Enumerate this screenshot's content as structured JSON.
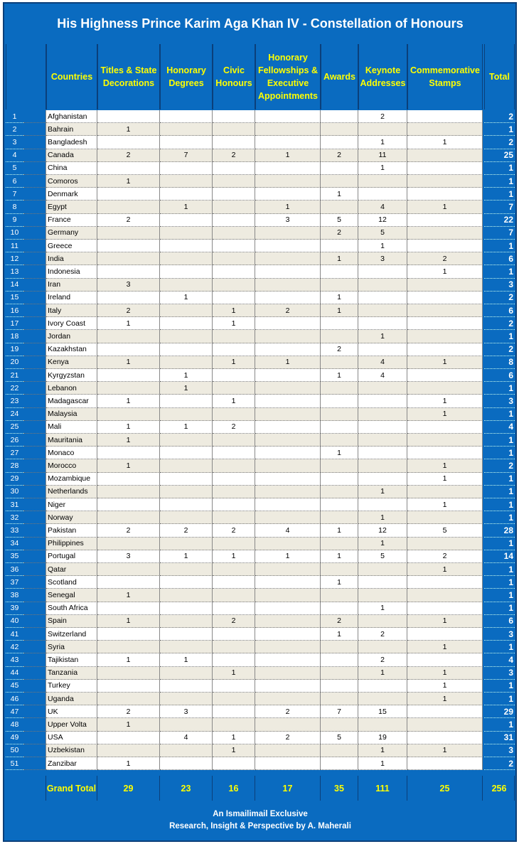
{
  "title": "His Highness Prince Karim Aga Khan IV - Constellation of Honours",
  "headers": [
    "Countries",
    "Titles & State Decorations",
    "Honorary Degrees",
    "Civic Honours",
    "Honorary Fellowships & Executive Appointments",
    "Awards",
    "Keynote Addresses",
    "Commemorative Stamps",
    "Total"
  ],
  "colors": {
    "header_bg": "#0a6bc0",
    "header_text": "#ffff00",
    "row_alt": "#eeebe0"
  },
  "rows": [
    {
      "n": "1",
      "country": "Afghanistan",
      "v": [
        "",
        "",
        "",
        "",
        "",
        "2",
        ""
      ],
      "total": "2",
      "flag": {
        "dir": "v",
        "c": [
          "#000000",
          "#d32011",
          "#007a36"
        ]
      }
    },
    {
      "n": "2",
      "country": "Bahrain",
      "v": [
        "1",
        "",
        "",
        "",
        "",
        "",
        ""
      ],
      "total": "1",
      "flag": {
        "dir": "v",
        "c": [
          "#ffffff",
          "#ce1126",
          "#ce1126"
        ]
      }
    },
    {
      "n": "3",
      "country": "Bangladesh",
      "v": [
        "",
        "",
        "",
        "",
        "",
        "1",
        "1"
      ],
      "total": "2",
      "flag": {
        "dir": "v",
        "c": [
          "#006a4e",
          "#f42a41",
          "#006a4e"
        ]
      }
    },
    {
      "n": "4",
      "country": "Canada",
      "v": [
        "2",
        "7",
        "2",
        "1",
        "2",
        "11",
        ""
      ],
      "total": "25",
      "flag": {
        "dir": "v",
        "c": [
          "#ff0000",
          "#ffffff",
          "#ff0000"
        ]
      }
    },
    {
      "n": "5",
      "country": "China",
      "v": [
        "",
        "",
        "",
        "",
        "",
        "1",
        ""
      ],
      "total": "1",
      "flag": {
        "dir": "v",
        "c": [
          "#de2910"
        ]
      }
    },
    {
      "n": "6",
      "country": "Comoros",
      "v": [
        "1",
        "",
        "",
        "",
        "",
        "",
        ""
      ],
      "total": "1",
      "flag": {
        "dir": "h",
        "c": [
          "#ffd100",
          "#ffffff",
          "#ce1126",
          "#3a75c4"
        ]
      }
    },
    {
      "n": "7",
      "country": "Denmark",
      "v": [
        "",
        "",
        "",
        "",
        "1",
        "",
        ""
      ],
      "total": "1",
      "flag": {
        "dir": "h",
        "c": [
          "#c8102e",
          "#ffffff",
          "#c8102e"
        ]
      }
    },
    {
      "n": "8",
      "country": "Egypt",
      "v": [
        "",
        "1",
        "",
        "1",
        "",
        "4",
        "1"
      ],
      "total": "7",
      "flag": {
        "dir": "h",
        "c": [
          "#ce1126",
          "#ffffff",
          "#000000"
        ]
      }
    },
    {
      "n": "9",
      "country": "France",
      "v": [
        "2",
        "",
        "",
        "3",
        "5",
        "12",
        ""
      ],
      "total": "22",
      "flag": {
        "dir": "v",
        "c": [
          "#0055a4",
          "#ffffff",
          "#ef4135"
        ]
      }
    },
    {
      "n": "10",
      "country": "Germany",
      "v": [
        "",
        "",
        "",
        "",
        "2",
        "5",
        ""
      ],
      "total": "7",
      "flag": {
        "dir": "h",
        "c": [
          "#000000",
          "#dd0000",
          "#ffce00"
        ]
      }
    },
    {
      "n": "11",
      "country": "Greece",
      "v": [
        "",
        "",
        "",
        "",
        "",
        "1",
        ""
      ],
      "total": "1",
      "flag": {
        "dir": "h",
        "c": [
          "#0d5eaf",
          "#ffffff",
          "#0d5eaf",
          "#ffffff",
          "#0d5eaf"
        ]
      }
    },
    {
      "n": "12",
      "country": "India",
      "v": [
        "",
        "",
        "",
        "",
        "1",
        "3",
        "2"
      ],
      "total": "6",
      "flag": {
        "dir": "h",
        "c": [
          "#ff9933",
          "#ffffff",
          "#138808"
        ]
      }
    },
    {
      "n": "13",
      "country": "Indonesia",
      "v": [
        "",
        "",
        "",
        "",
        "",
        "",
        "1"
      ],
      "total": "1",
      "flag": {
        "dir": "h",
        "c": [
          "#ce1126",
          "#ffffff"
        ]
      }
    },
    {
      "n": "14",
      "country": "Iran",
      "v": [
        "3",
        "",
        "",
        "",
        "",
        "",
        ""
      ],
      "total": "3",
      "flag": {
        "dir": "h",
        "c": [
          "#239f40",
          "#ffffff",
          "#da0000"
        ]
      }
    },
    {
      "n": "15",
      "country": "Ireland",
      "v": [
        "",
        "1",
        "",
        "",
        "1",
        "",
        ""
      ],
      "total": "2",
      "flag": {
        "dir": "v",
        "c": [
          "#169b62",
          "#ffffff",
          "#ff883e"
        ]
      }
    },
    {
      "n": "16",
      "country": "Italy",
      "v": [
        "2",
        "",
        "1",
        "2",
        "1",
        "",
        ""
      ],
      "total": "6",
      "flag": {
        "dir": "v",
        "c": [
          "#009246",
          "#ffffff",
          "#ce2b37"
        ]
      }
    },
    {
      "n": "17",
      "country": "Ivory Coast",
      "v": [
        "1",
        "",
        "1",
        "",
        "",
        "",
        ""
      ],
      "total": "2",
      "flag": {
        "dir": "v",
        "c": [
          "#f77f00",
          "#ffffff",
          "#009e60"
        ]
      }
    },
    {
      "n": "18",
      "country": "Jordan",
      "v": [
        "",
        "",
        "",
        "",
        "",
        "1",
        ""
      ],
      "total": "1",
      "flag": {
        "dir": "h",
        "c": [
          "#000000",
          "#ffffff",
          "#007a3d"
        ]
      }
    },
    {
      "n": "19",
      "country": "Kazakhstan",
      "v": [
        "",
        "",
        "",
        "",
        "2",
        "",
        ""
      ],
      "total": "2",
      "flag": {
        "dir": "h",
        "c": [
          "#00afca"
        ]
      }
    },
    {
      "n": "20",
      "country": "Kenya",
      "v": [
        "1",
        "",
        "1",
        "1",
        "",
        "4",
        "1"
      ],
      "total": "8",
      "flag": {
        "dir": "h",
        "c": [
          "#000000",
          "#bb0000",
          "#006600"
        ]
      }
    },
    {
      "n": "21",
      "country": "Kyrgyzstan",
      "v": [
        "",
        "1",
        "",
        "",
        "1",
        "4",
        ""
      ],
      "total": "6",
      "flag": {
        "dir": "h",
        "c": [
          "#e8112d"
        ]
      }
    },
    {
      "n": "22",
      "country": "Lebanon",
      "v": [
        "",
        "1",
        "",
        "",
        "",
        "",
        ""
      ],
      "total": "1",
      "flag": {
        "dir": "h",
        "c": [
          "#ed1c24",
          "#ffffff",
          "#ffffff",
          "#ed1c24"
        ]
      }
    },
    {
      "n": "23",
      "country": "Madagascar",
      "v": [
        "1",
        "",
        "1",
        "",
        "",
        "",
        "1"
      ],
      "total": "3",
      "flag": {
        "dir": "v",
        "c": [
          "#ffffff",
          "#fc3d32"
        ]
      }
    },
    {
      "n": "24",
      "country": "Malaysia",
      "v": [
        "",
        "",
        "",
        "",
        "",
        "",
        "1"
      ],
      "total": "1",
      "flag": {
        "dir": "h",
        "c": [
          "#cc0001",
          "#ffffff",
          "#cc0001",
          "#ffffff"
        ]
      }
    },
    {
      "n": "25",
      "country": "Mali",
      "v": [
        "1",
        "1",
        "2",
        "",
        "",
        "",
        ""
      ],
      "total": "4",
      "flag": {
        "dir": "v",
        "c": [
          "#14b53a",
          "#fcd116",
          "#ce1126"
        ]
      }
    },
    {
      "n": "26",
      "country": "Mauritania",
      "v": [
        "1",
        "",
        "",
        "",
        "",
        "",
        ""
      ],
      "total": "1",
      "flag": {
        "dir": "h",
        "c": [
          "#006233"
        ]
      }
    },
    {
      "n": "27",
      "country": "Monaco",
      "v": [
        "",
        "",
        "",
        "",
        "1",
        "",
        ""
      ],
      "total": "1",
      "flag": {
        "dir": "h",
        "c": [
          "#ce1126",
          "#ffffff"
        ]
      }
    },
    {
      "n": "28",
      "country": "Morocco",
      "v": [
        "1",
        "",
        "",
        "",
        "",
        "",
        "1"
      ],
      "total": "2",
      "flag": {
        "dir": "h",
        "c": [
          "#c1272d"
        ]
      }
    },
    {
      "n": "29",
      "country": "Mozambique",
      "v": [
        "",
        "",
        "",
        "",
        "",
        "",
        "1"
      ],
      "total": "1",
      "flag": {
        "dir": "h",
        "c": [
          "#007168",
          "#000000",
          "#fce100"
        ]
      }
    },
    {
      "n": "30",
      "country": "Netherlands",
      "v": [
        "",
        "",
        "",
        "",
        "",
        "1",
        ""
      ],
      "total": "1",
      "flag": {
        "dir": "h",
        "c": [
          "#ae1c28",
          "#ffffff",
          "#21468b"
        ]
      }
    },
    {
      "n": "31",
      "country": "Niger",
      "v": [
        "",
        "",
        "",
        "",
        "",
        "",
        "1"
      ],
      "total": "1",
      "flag": {
        "dir": "h",
        "c": [
          "#e05206",
          "#ffffff",
          "#0db02b"
        ]
      }
    },
    {
      "n": "32",
      "country": "Norway",
      "v": [
        "",
        "",
        "",
        "",
        "",
        "1",
        ""
      ],
      "total": "1",
      "flag": {
        "dir": "h",
        "c": [
          "#ba0c2f",
          "#00205b",
          "#ba0c2f"
        ]
      }
    },
    {
      "n": "33",
      "country": "Pakistan",
      "v": [
        "2",
        "2",
        "2",
        "4",
        "1",
        "12",
        "5"
      ],
      "total": "28",
      "flag": {
        "dir": "v",
        "c": [
          "#ffffff",
          "#01411c",
          "#01411c",
          "#01411c"
        ]
      }
    },
    {
      "n": "34",
      "country": "Philippines",
      "v": [
        "",
        "",
        "",
        "",
        "",
        "1",
        ""
      ],
      "total": "1",
      "flag": {
        "dir": "h",
        "c": [
          "#0038a8",
          "#ce1126"
        ]
      }
    },
    {
      "n": "35",
      "country": "Portugal",
      "v": [
        "3",
        "1",
        "1",
        "1",
        "1",
        "5",
        "2"
      ],
      "total": "14",
      "flag": {
        "dir": "v",
        "c": [
          "#006600",
          "#ff0000",
          "#ff0000"
        ]
      }
    },
    {
      "n": "36",
      "country": "Qatar",
      "v": [
        "",
        "",
        "",
        "",
        "",
        "",
        "1"
      ],
      "total": "1",
      "flag": {
        "dir": "v",
        "c": [
          "#ffffff",
          "#8a1538",
          "#8a1538"
        ]
      }
    },
    {
      "n": "37",
      "country": "Scotland",
      "v": [
        "",
        "",
        "",
        "",
        "1",
        "",
        ""
      ],
      "total": "1",
      "flag": {
        "dir": "h",
        "c": [
          "#ffffff",
          "#0039a6",
          "#d52b1e"
        ]
      }
    },
    {
      "n": "38",
      "country": "Senegal",
      "v": [
        "1",
        "",
        "",
        "",
        "",
        "",
        ""
      ],
      "total": "1",
      "flag": {
        "dir": "v",
        "c": [
          "#00853f",
          "#fdef42",
          "#e31b23"
        ]
      }
    },
    {
      "n": "39",
      "country": "South Africa",
      "v": [
        "",
        "",
        "",
        "",
        "",
        "1",
        ""
      ],
      "total": "1",
      "flag": {
        "dir": "h",
        "c": [
          "#de3831",
          "#007a4d",
          "#002395"
        ]
      }
    },
    {
      "n": "40",
      "country": "Spain",
      "v": [
        "1",
        "",
        "2",
        "",
        "2",
        "",
        "1"
      ],
      "total": "6",
      "flag": {
        "dir": "h",
        "c": [
          "#c60b1e",
          "#ffc400",
          "#ffc400",
          "#c60b1e"
        ]
      }
    },
    {
      "n": "41",
      "country": "Switzerland",
      "v": [
        "",
        "",
        "",
        "",
        "1",
        "2",
        ""
      ],
      "total": "3",
      "flag": {
        "dir": "h",
        "c": [
          "#ff0000"
        ]
      }
    },
    {
      "n": "42",
      "country": "Syria",
      "v": [
        "",
        "",
        "",
        "",
        "",
        "",
        "1"
      ],
      "total": "1",
      "flag": {
        "dir": "h",
        "c": [
          "#ce1126",
          "#ffffff",
          "#000000"
        ]
      }
    },
    {
      "n": "43",
      "country": "Tajikistan",
      "v": [
        "1",
        "1",
        "",
        "",
        "",
        "2",
        ""
      ],
      "total": "4",
      "flag": {
        "dir": "h",
        "c": [
          "#cc0000",
          "#ffffff",
          "#006600"
        ]
      }
    },
    {
      "n": "44",
      "country": "Tanzania",
      "v": [
        "",
        "",
        "1",
        "",
        "",
        "1",
        "1"
      ],
      "total": "3",
      "flag": {
        "dir": "h",
        "c": [
          "#1eb53a",
          "#000000",
          "#00a3dd"
        ]
      }
    },
    {
      "n": "45",
      "country": "Turkey",
      "v": [
        "",
        "",
        "",
        "",
        "",
        "",
        "1"
      ],
      "total": "1",
      "flag": {
        "dir": "h",
        "c": [
          "#e30a17"
        ]
      }
    },
    {
      "n": "46",
      "country": "Uganda",
      "v": [
        "",
        "",
        "",
        "",
        "",
        "",
        "1"
      ],
      "total": "1",
      "flag": {
        "dir": "h",
        "c": [
          "#000000",
          "#fcdc04",
          "#d90000",
          "#000000",
          "#fcdc04",
          "#d90000"
        ]
      }
    },
    {
      "n": "47",
      "country": "UK",
      "v": [
        "2",
        "3",
        "",
        "2",
        "7",
        "15",
        ""
      ],
      "total": "29",
      "flag": {
        "dir": "h",
        "c": [
          "#012169",
          "#c8102e",
          "#012169"
        ]
      }
    },
    {
      "n": "48",
      "country": "Upper Volta",
      "v": [
        "1",
        "",
        "",
        "",
        "",
        "",
        ""
      ],
      "total": "1",
      "flag": {
        "dir": "h",
        "c": [
          "#000000",
          "#ffffff",
          "#de0000"
        ]
      }
    },
    {
      "n": "49",
      "country": "USA",
      "v": [
        "",
        "4",
        "1",
        "2",
        "5",
        "19",
        ""
      ],
      "total": "31",
      "flag": {
        "dir": "h",
        "c": [
          "#b22234",
          "#ffffff",
          "#b22234",
          "#ffffff"
        ]
      }
    },
    {
      "n": "50",
      "country": "Uzbekistan",
      "v": [
        "",
        "",
        "1",
        "",
        "",
        "1",
        "1"
      ],
      "total": "3",
      "flag": {
        "dir": "h",
        "c": [
          "#0099b5",
          "#ffffff",
          "#1eb53a"
        ]
      }
    },
    {
      "n": "51",
      "country": "Zanzibar",
      "v": [
        "1",
        "",
        "",
        "",
        "",
        "1",
        ""
      ],
      "total": "2",
      "flag": {
        "dir": "h",
        "c": [
          "#e8112d"
        ]
      }
    }
  ],
  "grand_total": {
    "label": "Grand Total",
    "values": [
      "29",
      "23",
      "16",
      "17",
      "35",
      "111",
      "25"
    ],
    "total": "256"
  },
  "footer": {
    "line1": "An Ismailimail Exclusive",
    "line2": "Research, Insight & Perspective by A. Maherali"
  }
}
